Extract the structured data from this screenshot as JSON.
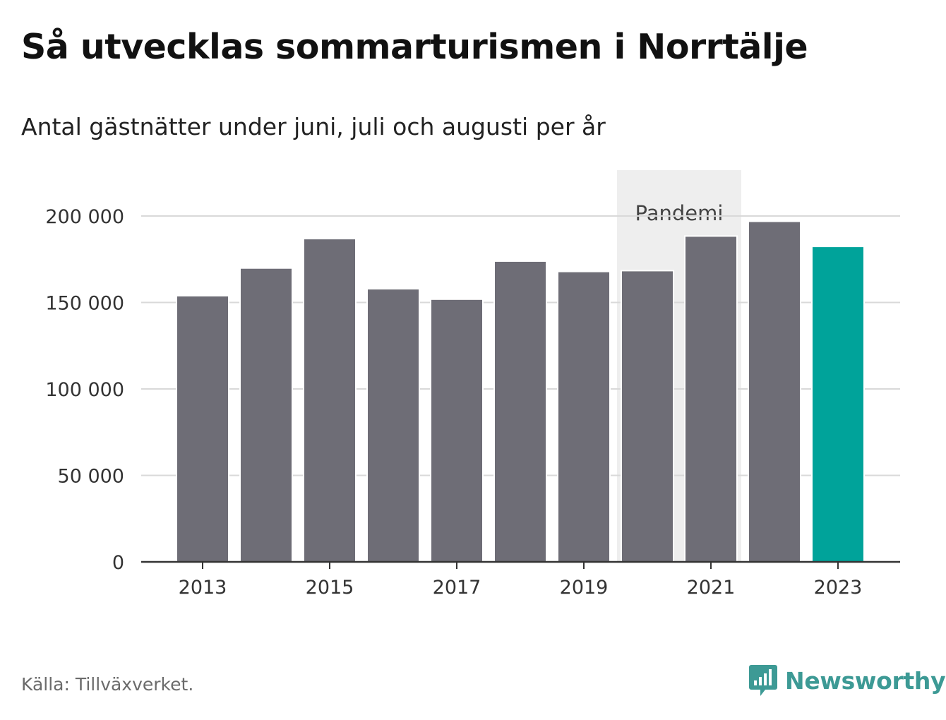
{
  "title": "Så utvecklas sommarturismen i Norrtälje",
  "subtitle": "Antal gästnätter under juni, juli och augusti per år",
  "source": "Källa: Tillväxverket.",
  "logo_text": "Newsworthy",
  "colors": {
    "bar": "#6e6d76",
    "highlight": "#00a39a",
    "band": "#eeeeee",
    "logo": "#3d9a95"
  },
  "chart_data": {
    "type": "bar",
    "categories": [
      "2013",
      "2014",
      "2015",
      "2016",
      "2017",
      "2018",
      "2019",
      "2020",
      "2021",
      "2022",
      "2023"
    ],
    "values": [
      153500,
      169500,
      186500,
      157500,
      151500,
      173500,
      167500,
      168000,
      188000,
      196500,
      182000
    ],
    "highlight_category": "2023",
    "ylim": [
      0,
      225000
    ],
    "yticks": [
      0,
      50000,
      100000,
      150000,
      200000
    ],
    "ytick_labels": [
      "0",
      "50 000",
      "100 000",
      "150 000",
      "200 000"
    ],
    "xtick_labels": [
      "2013",
      "2015",
      "2017",
      "2019",
      "2021",
      "2023"
    ],
    "annotation": {
      "label": "Pandemi",
      "categories": [
        "2020",
        "2021"
      ]
    },
    "grid": true
  }
}
